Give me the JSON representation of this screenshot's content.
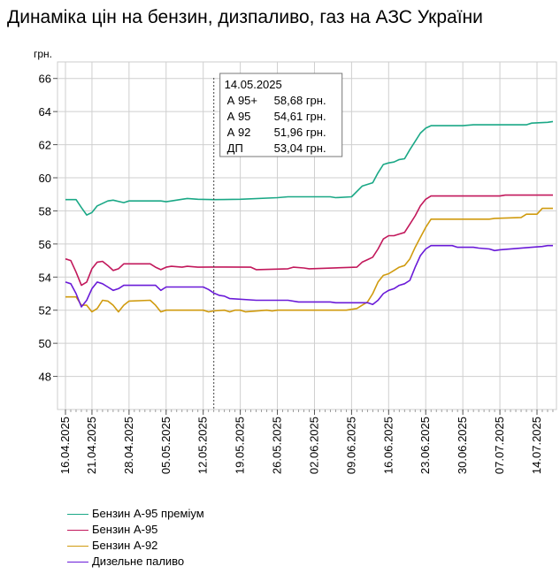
{
  "title": "Динаміка цін на бензин, дизпаливо, газ на АЗС України",
  "chart_data": {
    "type": "line",
    "title": "Динаміка цін на бензин, дизпаливо, газ на АЗС України",
    "ylabel": "грн.",
    "xlabel": "",
    "ylim": [
      46,
      67
    ],
    "yticks": [
      "66",
      "64",
      "62",
      "60",
      "58",
      "56",
      "54",
      "52",
      "50",
      "48"
    ],
    "xticks": [
      "16.04.2025",
      "21.04.2025",
      "28.04.2025",
      "05.05.2025",
      "12.05.2025",
      "19.05.2025",
      "26.05.2025",
      "02.06.2025",
      "09.06.2025",
      "16.06.2025",
      "23.06.2025",
      "30.06.2025",
      "07.07.2025",
      "14.07.2025"
    ],
    "grid": true,
    "legend_position": "bottom",
    "tooltip": {
      "date": "14.05.2025",
      "rows": [
        {
          "label": "А 95+",
          "value": "58,68 грн."
        },
        {
          "label": "А 95",
          "value": "54,61 грн."
        },
        {
          "label": "А 92",
          "value": "51,96 грн."
        },
        {
          "label": "ДП",
          "value": "53,04 грн."
        }
      ]
    },
    "series": [
      {
        "name": "Бензин А-95 преміум",
        "color": "#1aa886",
        "points": [
          [
            "16.04.2025",
            58.68
          ],
          [
            "18.04.2025",
            58.68
          ],
          [
            "19.04.2025",
            58.2
          ],
          [
            "20.04.2025",
            57.75
          ],
          [
            "21.04.2025",
            57.9
          ],
          [
            "22.04.2025",
            58.3
          ],
          [
            "24.04.2025",
            58.6
          ],
          [
            "25.04.2025",
            58.65
          ],
          [
            "27.04.2025",
            58.5
          ],
          [
            "28.04.2025",
            58.6
          ],
          [
            "04.05.2025",
            58.6
          ],
          [
            "05.05.2025",
            58.55
          ],
          [
            "06.05.2025",
            58.6
          ],
          [
            "08.05.2025",
            58.7
          ],
          [
            "09.05.2025",
            58.75
          ],
          [
            "11.05.2025",
            58.7
          ],
          [
            "14.05.2025",
            58.68
          ],
          [
            "19.05.2025",
            58.7
          ],
          [
            "26.05.2025",
            58.8
          ],
          [
            "28.05.2025",
            58.85
          ],
          [
            "05.06.2025",
            58.85
          ],
          [
            "06.06.2025",
            58.8
          ],
          [
            "09.06.2025",
            58.85
          ],
          [
            "11.06.2025",
            59.5
          ],
          [
            "13.06.2025",
            59.7
          ],
          [
            "14.06.2025",
            60.3
          ],
          [
            "15.06.2025",
            60.8
          ],
          [
            "16.06.2025",
            60.9
          ],
          [
            "17.06.2025",
            60.95
          ],
          [
            "18.06.2025",
            61.1
          ],
          [
            "19.06.2025",
            61.15
          ],
          [
            "20.06.2025",
            61.7
          ],
          [
            "21.06.2025",
            62.2
          ],
          [
            "22.06.2025",
            62.7
          ],
          [
            "23.06.2025",
            63.0
          ],
          [
            "24.06.2025",
            63.15
          ],
          [
            "30.06.2025",
            63.15
          ],
          [
            "02.07.2025",
            63.2
          ],
          [
            "12.07.2025",
            63.2
          ],
          [
            "13.07.2025",
            63.3
          ],
          [
            "16.07.2025",
            63.35
          ],
          [
            "17.07.2025",
            63.4
          ]
        ]
      },
      {
        "name": "Бензин А-95",
        "color": "#c2185b",
        "points": [
          [
            "16.04.2025",
            55.1
          ],
          [
            "17.04.2025",
            55.0
          ],
          [
            "18.04.2025",
            54.3
          ],
          [
            "19.04.2025",
            53.5
          ],
          [
            "20.04.2025",
            53.7
          ],
          [
            "21.04.2025",
            54.5
          ],
          [
            "22.04.2025",
            54.9
          ],
          [
            "23.04.2025",
            54.95
          ],
          [
            "24.04.2025",
            54.7
          ],
          [
            "25.04.2025",
            54.4
          ],
          [
            "26.04.2025",
            54.5
          ],
          [
            "27.04.2025",
            54.8
          ],
          [
            "28.04.2025",
            54.8
          ],
          [
            "02.05.2025",
            54.8
          ],
          [
            "03.05.2025",
            54.6
          ],
          [
            "04.05.2025",
            54.45
          ],
          [
            "05.05.2025",
            54.6
          ],
          [
            "06.05.2025",
            54.65
          ],
          [
            "08.05.2025",
            54.6
          ],
          [
            "09.05.2025",
            54.65
          ],
          [
            "11.05.2025",
            54.6
          ],
          [
            "14.05.2025",
            54.61
          ],
          [
            "21.05.2025",
            54.6
          ],
          [
            "22.05.2025",
            54.45
          ],
          [
            "28.05.2025",
            54.5
          ],
          [
            "29.05.2025",
            54.6
          ],
          [
            "31.05.2025",
            54.55
          ],
          [
            "01.06.2025",
            54.5
          ],
          [
            "10.06.2025",
            54.6
          ],
          [
            "11.06.2025",
            54.9
          ],
          [
            "12.06.2025",
            55.05
          ],
          [
            "13.06.2025",
            55.2
          ],
          [
            "14.06.2025",
            55.7
          ],
          [
            "15.06.2025",
            56.3
          ],
          [
            "16.06.2025",
            56.5
          ],
          [
            "17.06.2025",
            56.5
          ],
          [
            "18.06.2025",
            56.6
          ],
          [
            "19.06.2025",
            56.7
          ],
          [
            "20.06.2025",
            57.2
          ],
          [
            "21.06.2025",
            57.7
          ],
          [
            "22.06.2025",
            58.3
          ],
          [
            "23.06.2025",
            58.7
          ],
          [
            "24.06.2025",
            58.9
          ],
          [
            "07.07.2025",
            58.9
          ],
          [
            "08.07.2025",
            58.95
          ],
          [
            "17.07.2025",
            58.95
          ]
        ]
      },
      {
        "name": "Бензин А-92",
        "color": "#d09b0f",
        "points": [
          [
            "16.04.2025",
            52.8
          ],
          [
            "18.04.2025",
            52.8
          ],
          [
            "19.04.2025",
            52.3
          ],
          [
            "20.04.2025",
            52.3
          ],
          [
            "21.04.2025",
            51.9
          ],
          [
            "22.04.2025",
            52.1
          ],
          [
            "23.04.2025",
            52.6
          ],
          [
            "24.04.2025",
            52.55
          ],
          [
            "25.04.2025",
            52.3
          ],
          [
            "26.04.2025",
            51.9
          ],
          [
            "27.04.2025",
            52.3
          ],
          [
            "28.04.2025",
            52.55
          ],
          [
            "02.05.2025",
            52.6
          ],
          [
            "03.05.2025",
            52.3
          ],
          [
            "04.05.2025",
            51.9
          ],
          [
            "05.05.2025",
            52.0
          ],
          [
            "12.05.2025",
            52.0
          ],
          [
            "13.05.2025",
            51.9
          ],
          [
            "14.05.2025",
            51.96
          ],
          [
            "16.05.2025",
            52.0
          ],
          [
            "17.05.2025",
            51.9
          ],
          [
            "18.05.2025",
            52.0
          ],
          [
            "19.05.2025",
            52.0
          ],
          [
            "20.05.2025",
            51.9
          ],
          [
            "24.05.2025",
            52.0
          ],
          [
            "25.05.2025",
            51.95
          ],
          [
            "26.05.2025",
            52.0
          ],
          [
            "08.06.2025",
            52.0
          ],
          [
            "10.06.2025",
            52.1
          ],
          [
            "11.06.2025",
            52.3
          ],
          [
            "12.06.2025",
            52.5
          ],
          [
            "13.06.2025",
            53.0
          ],
          [
            "14.06.2025",
            53.7
          ],
          [
            "15.06.2025",
            54.1
          ],
          [
            "16.06.2025",
            54.2
          ],
          [
            "17.06.2025",
            54.4
          ],
          [
            "18.06.2025",
            54.6
          ],
          [
            "19.06.2025",
            54.7
          ],
          [
            "20.06.2025",
            55.1
          ],
          [
            "21.06.2025",
            55.8
          ],
          [
            "22.06.2025",
            56.4
          ],
          [
            "23.06.2025",
            57.0
          ],
          [
            "24.06.2025",
            57.5
          ],
          [
            "05.07.2025",
            57.5
          ],
          [
            "06.07.2025",
            57.55
          ],
          [
            "11.07.2025",
            57.6
          ],
          [
            "12.07.2025",
            57.8
          ],
          [
            "14.07.2025",
            57.8
          ],
          [
            "15.07.2025",
            58.15
          ],
          [
            "17.07.2025",
            58.15
          ]
        ]
      },
      {
        "name": "Дизельне паливо",
        "color": "#6a1bd8",
        "points": [
          [
            "16.04.2025",
            53.7
          ],
          [
            "17.04.2025",
            53.6
          ],
          [
            "18.04.2025",
            53.0
          ],
          [
            "19.04.2025",
            52.2
          ],
          [
            "20.04.2025",
            52.6
          ],
          [
            "21.04.2025",
            53.3
          ],
          [
            "22.04.2025",
            53.7
          ],
          [
            "23.04.2025",
            53.6
          ],
          [
            "24.04.2025",
            53.4
          ],
          [
            "25.04.2025",
            53.2
          ],
          [
            "26.04.2025",
            53.3
          ],
          [
            "27.04.2025",
            53.5
          ],
          [
            "03.05.2025",
            53.5
          ],
          [
            "04.05.2025",
            53.2
          ],
          [
            "05.05.2025",
            53.4
          ],
          [
            "12.05.2025",
            53.4
          ],
          [
            "13.05.2025",
            53.25
          ],
          [
            "14.05.2025",
            53.04
          ],
          [
            "15.05.2025",
            52.9
          ],
          [
            "16.05.2025",
            52.85
          ],
          [
            "17.05.2025",
            52.7
          ],
          [
            "22.05.2025",
            52.6
          ],
          [
            "23.05.2025",
            52.6
          ],
          [
            "28.05.2025",
            52.6
          ],
          [
            "30.05.2025",
            52.5
          ],
          [
            "05.06.2025",
            52.5
          ],
          [
            "06.06.2025",
            52.45
          ],
          [
            "12.06.2025",
            52.45
          ],
          [
            "13.06.2025",
            52.35
          ],
          [
            "14.06.2025",
            52.6
          ],
          [
            "15.06.2025",
            53.0
          ],
          [
            "16.06.2025",
            53.2
          ],
          [
            "17.06.2025",
            53.3
          ],
          [
            "18.06.2025",
            53.5
          ],
          [
            "19.06.2025",
            53.6
          ],
          [
            "20.06.2025",
            53.8
          ],
          [
            "21.06.2025",
            54.6
          ],
          [
            "22.06.2025",
            55.3
          ],
          [
            "23.06.2025",
            55.7
          ],
          [
            "24.06.2025",
            55.9
          ],
          [
            "28.06.2025",
            55.9
          ],
          [
            "29.06.2025",
            55.8
          ],
          [
            "02.07.2025",
            55.8
          ],
          [
            "03.07.2025",
            55.75
          ],
          [
            "05.07.2025",
            55.7
          ],
          [
            "06.07.2025",
            55.6
          ],
          [
            "07.07.2025",
            55.65
          ],
          [
            "13.07.2025",
            55.8
          ],
          [
            "15.07.2025",
            55.85
          ],
          [
            "16.07.2025",
            55.9
          ],
          [
            "17.07.2025",
            55.9
          ]
        ]
      }
    ]
  }
}
